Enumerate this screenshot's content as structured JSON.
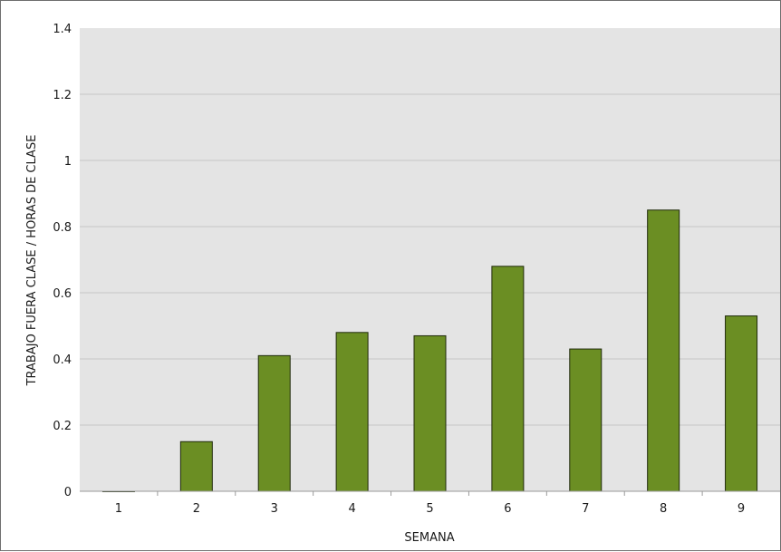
{
  "chart_data": {
    "type": "bar",
    "title": "",
    "xlabel": "SEMANA",
    "ylabel": "TRABAJO FUERA CLASE / HORAS DE CLASE",
    "categories": [
      "1",
      "2",
      "3",
      "4",
      "5",
      "6",
      "7",
      "8",
      "9"
    ],
    "values": [
      0,
      0.15,
      0.41,
      0.48,
      0.47,
      0.68,
      0.43,
      0.85,
      0.53
    ],
    "ylim": [
      0,
      1.4
    ],
    "yticks": [
      "0",
      "0.2",
      "0.4",
      "0.6",
      "0.8",
      "1",
      "1.2",
      "1.4"
    ],
    "grid": true,
    "bar_color": "#6b8e23",
    "bar_edge_color": "#1f2a0a",
    "plot_background": "#e4e4e4",
    "gridline_color": "#c6c6c6"
  }
}
